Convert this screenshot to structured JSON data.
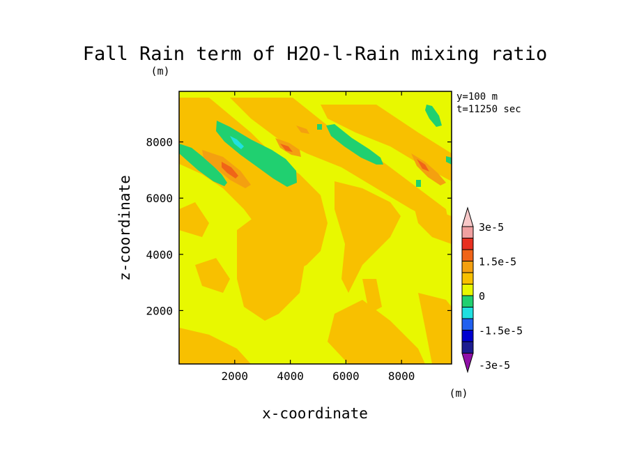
{
  "chart_data": {
    "type": "heatmap",
    "title": "Fall Rain term of H2O-l-Rain mixing ratio",
    "units": "(m)",
    "colorbar_units": "(m)",
    "info": [
      "y=100 m",
      "t=11250 sec"
    ],
    "xlabel": "x-coordinate",
    "ylabel": "z-coordinate",
    "xlim": [
      0,
      9800
    ],
    "ylim": [
      100,
      9800
    ],
    "xticks": [
      2000,
      4000,
      6000,
      8000
    ],
    "yticks": [
      2000,
      4000,
      6000,
      8000
    ],
    "grid": false,
    "legend_position": "right",
    "colorbar": {
      "labels": [
        "3e-5",
        "1.5e-5",
        "0",
        "-1.5e-5",
        "-3e-5"
      ],
      "levels_top_to_bottom": [
        {
          "max": "3e-5",
          "color": "#f8c8c8"
        },
        {
          "max": "2.5e-5",
          "color": "#f0a0a0"
        },
        {
          "max": "2e-5",
          "color": "#e83020"
        },
        {
          "max": "1.5e-5",
          "color": "#f06418"
        },
        {
          "max": "1e-5",
          "color": "#f4a010"
        },
        {
          "max": "5e-6",
          "color": "#f8c000"
        },
        {
          "max": "0",
          "color": "#e8f800"
        },
        {
          "max": "-5e-6",
          "color": "#20d070"
        },
        {
          "max": "-1e-5",
          "color": "#20e0e0"
        },
        {
          "max": "-1.5e-5",
          "color": "#2060f0"
        },
        {
          "max": "-2e-5",
          "color": "#0000d0"
        },
        {
          "max": "-2.5e-5",
          "color": "#1c1c90"
        },
        {
          "max": "-3e-5",
          "color": "#9010a8"
        }
      ]
    },
    "regions": [
      {
        "name": "negative band",
        "sign": "negative",
        "approx_x": [
          1400,
          4300
        ],
        "approx_z": [
          6600,
          8800
        ],
        "level_color": "#20d070"
      },
      {
        "name": "negative band",
        "sign": "negative",
        "approx_x": [
          0,
          1700
        ],
        "approx_z": [
          6400,
          8000
        ],
        "level_color": "#20d070"
      },
      {
        "name": "negative band",
        "sign": "negative",
        "approx_x": [
          4700,
          6800
        ],
        "approx_z": [
          7200,
          8800
        ],
        "level_color": "#20d070"
      },
      {
        "name": "negative band",
        "sign": "negative",
        "approx_x": [
          8800,
          9500
        ],
        "approx_z": [
          8800,
          9600
        ],
        "level_color": "#20d070"
      },
      {
        "name": "negative peak",
        "sign": "negative",
        "approx_x": [
          1900,
          2300
        ],
        "approx_z": [
          7900,
          8300
        ],
        "level_color": "#20e0e0"
      },
      {
        "name": "positive peak",
        "sign": "positive",
        "approx_x": [
          1500,
          2500
        ],
        "approx_z": [
          6900,
          7700
        ],
        "level_color": "#e83020"
      },
      {
        "name": "positive peak",
        "sign": "positive",
        "approx_x": [
          3500,
          4300
        ],
        "approx_z": [
          7400,
          8000
        ],
        "level_color": "#f06418"
      },
      {
        "name": "positive peak",
        "sign": "positive",
        "approx_x": [
          8500,
          9300
        ],
        "approx_z": [
          6600,
          7600
        ],
        "level_color": "#f06418"
      }
    ]
  }
}
